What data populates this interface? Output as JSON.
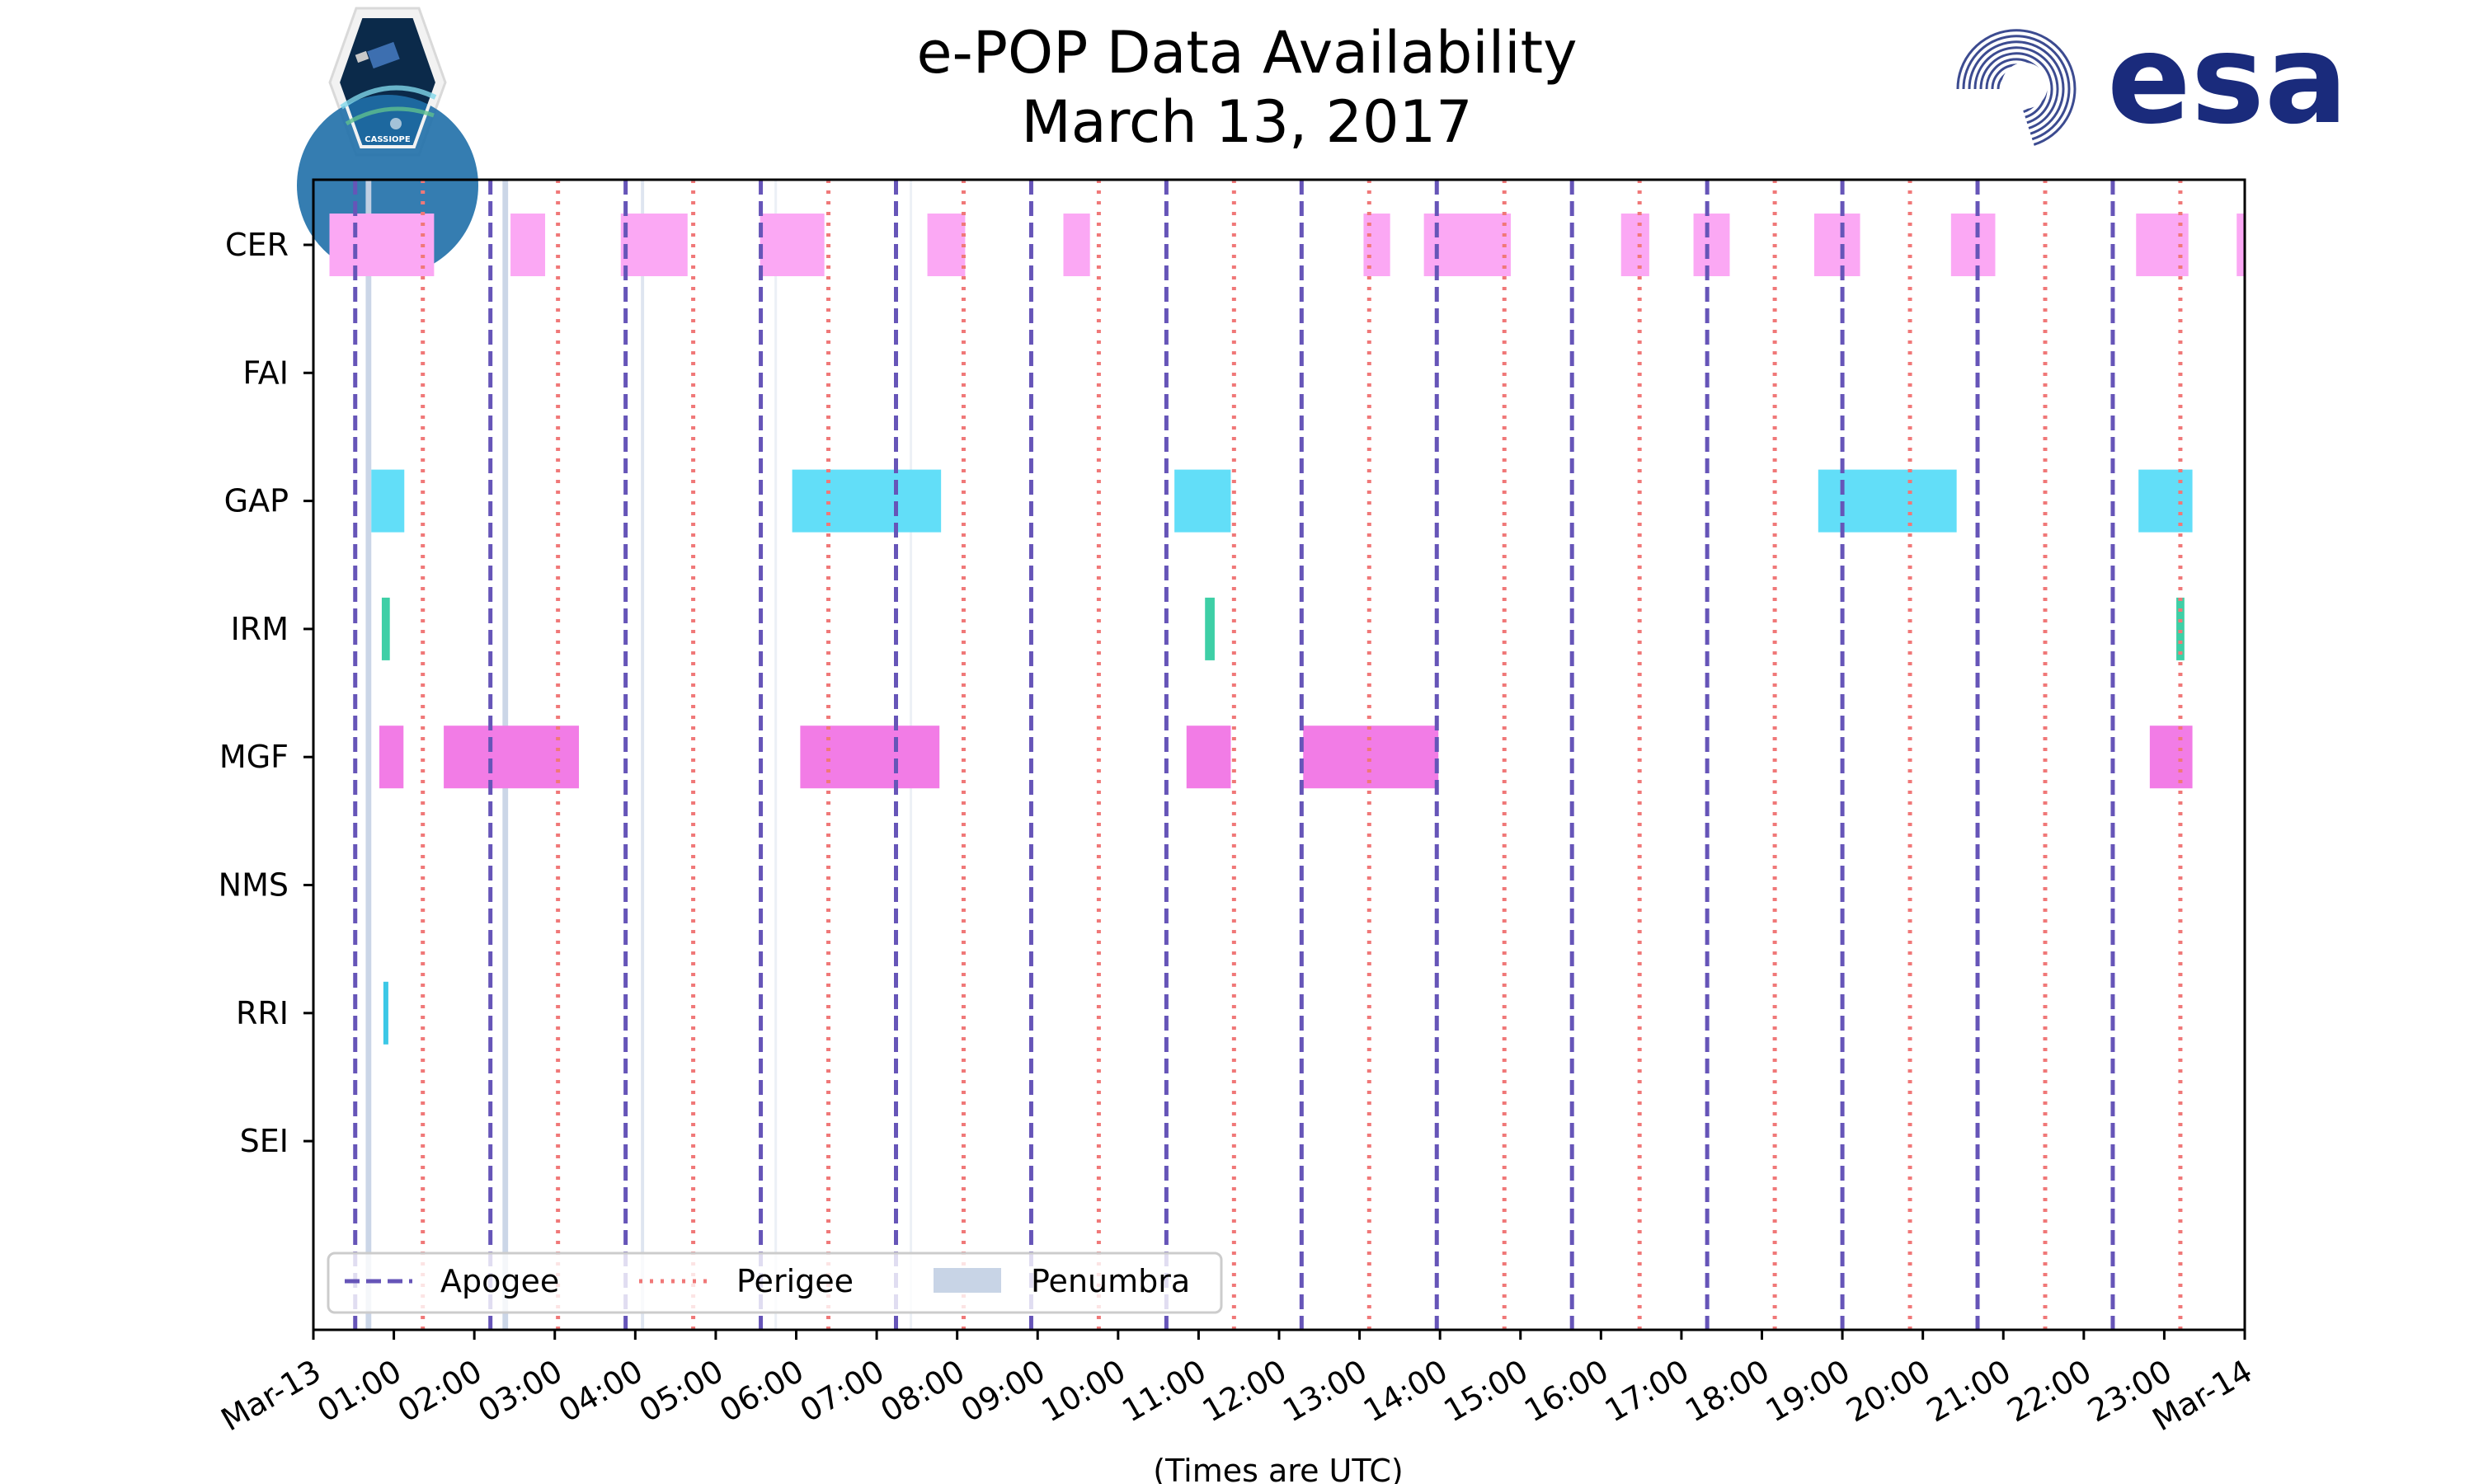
{
  "header": {
    "title_line1": "e-POP Data Availability",
    "title_line2": "March 13, 2017",
    "left_logo_text": "CASSIOPE",
    "right_logo_text": "esa"
  },
  "colors": {
    "apogee": "#6655b8",
    "perigee": "#f07878",
    "penumbra": "#c8d4e6",
    "CER": "#fba8f4",
    "GAP": "#62def8",
    "IRM": "#3ecfa6",
    "MGF": "#f27ce6",
    "RRI": "#3cc8e6",
    "esa_blue": "#1a2b7c"
  },
  "chart_data": {
    "type": "timeline",
    "title": "e-POP Data Availability March 13, 2017",
    "xlabel": "(Times are UTC)",
    "ylabel": "",
    "xlim_hours": [
      0,
      24
    ],
    "x_tick_labels": [
      "Mar-13",
      "01:00",
      "02:00",
      "03:00",
      "04:00",
      "05:00",
      "06:00",
      "07:00",
      "08:00",
      "09:00",
      "10:00",
      "11:00",
      "12:00",
      "13:00",
      "14:00",
      "15:00",
      "16:00",
      "17:00",
      "18:00",
      "19:00",
      "20:00",
      "21:00",
      "22:00",
      "23:00",
      "Mar-14"
    ],
    "categories": [
      "CER",
      "FAI",
      "GAP",
      "IRM",
      "MGF",
      "NMS",
      "RRI",
      "SEI"
    ],
    "intervals": {
      "CER": [
        [
          0.2,
          1.5
        ],
        [
          2.45,
          2.88
        ],
        [
          3.82,
          4.65
        ],
        [
          5.55,
          6.35
        ],
        [
          7.63,
          8.1
        ],
        [
          9.32,
          9.65
        ],
        [
          13.05,
          13.38
        ],
        [
          13.8,
          14.88
        ],
        [
          16.25,
          16.6
        ],
        [
          17.15,
          17.6
        ],
        [
          18.65,
          19.22
        ],
        [
          20.35,
          20.9
        ],
        [
          22.65,
          23.3
        ],
        [
          23.9,
          24.0
        ]
      ],
      "FAI": [],
      "GAP": [
        [
          0.72,
          1.13
        ],
        [
          5.95,
          7.8
        ],
        [
          10.7,
          11.4
        ],
        [
          18.7,
          20.42
        ],
        [
          22.68,
          23.35
        ]
      ],
      "IRM": [
        [
          0.85,
          0.95
        ],
        [
          11.08,
          11.2
        ],
        [
          23.15,
          23.25
        ]
      ],
      "MGF": [
        [
          0.82,
          1.12
        ],
        [
          1.62,
          3.3
        ],
        [
          6.05,
          7.78
        ],
        [
          10.85,
          11.4
        ],
        [
          12.3,
          13.98
        ],
        [
          22.82,
          23.35
        ]
      ],
      "NMS": [],
      "RRI": [
        [
          0.87,
          0.93
        ]
      ],
      "SEI": []
    },
    "apogee_hours": [
      0.52,
      2.2,
      3.88,
      5.56,
      7.24,
      8.92,
      10.6,
      12.28,
      13.96,
      15.64,
      17.32,
      19.0,
      20.68,
      22.36
    ],
    "perigee_hours": [
      1.36,
      3.04,
      4.72,
      6.4,
      8.08,
      9.76,
      11.44,
      13.12,
      14.8,
      16.48,
      18.16,
      19.84,
      21.52,
      23.2
    ],
    "penumbra": [
      [
        0.65,
        0.72,
        "strong"
      ],
      [
        2.35,
        2.42,
        "strong"
      ],
      [
        4.07,
        4.11,
        "light"
      ],
      [
        5.73,
        5.76,
        "faint"
      ],
      [
        7.41,
        7.43,
        "faint"
      ]
    ],
    "legend": {
      "position": "lower-left",
      "items": [
        {
          "label": "Apogee",
          "style": "dashed",
          "color_key": "apogee"
        },
        {
          "label": "Perigee",
          "style": "dotted",
          "color_key": "perigee"
        },
        {
          "label": "Penumbra",
          "style": "patch",
          "color_key": "penumbra"
        }
      ]
    }
  }
}
